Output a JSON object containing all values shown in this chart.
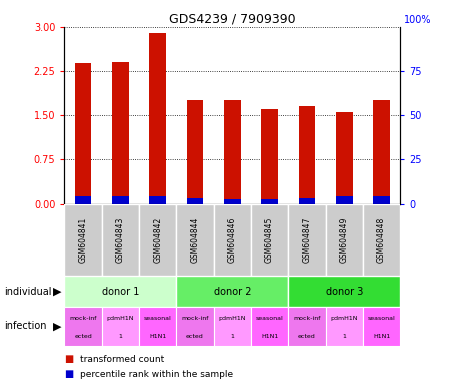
{
  "title": "GDS4239 / 7909390",
  "samples": [
    "GSM604841",
    "GSM604843",
    "GSM604842",
    "GSM604844",
    "GSM604846",
    "GSM604845",
    "GSM604847",
    "GSM604849",
    "GSM604848"
  ],
  "transformed_count": [
    2.38,
    2.4,
    2.9,
    1.75,
    1.75,
    1.6,
    1.65,
    1.55,
    1.75
  ],
  "percentile_rank": [
    0.12,
    0.12,
    0.12,
    0.1,
    0.08,
    0.07,
    0.09,
    0.12,
    0.12
  ],
  "bar_color_red": "#cc1100",
  "bar_color_blue": "#0000cc",
  "ylim_left": [
    0,
    3
  ],
  "ylim_right": [
    0,
    100
  ],
  "yticks_left": [
    0,
    0.75,
    1.5,
    2.25,
    3
  ],
  "yticks_right": [
    0,
    25,
    50,
    75,
    100
  ],
  "donors": [
    {
      "label": "donor 1",
      "start": 0,
      "end": 3,
      "color": "#ccffcc"
    },
    {
      "label": "donor 2",
      "start": 3,
      "end": 6,
      "color": "#66ee66"
    },
    {
      "label": "donor 3",
      "start": 6,
      "end": 9,
      "color": "#33dd33"
    }
  ],
  "infections": [
    {
      "label": "mock-inf\nected",
      "color": "#ee77ee"
    },
    {
      "label": "pdmH1N\n1",
      "color": "#ff99ff"
    },
    {
      "label": "seasonal\nH1N1",
      "color": "#ff66ff"
    },
    {
      "label": "mock-inf\nected",
      "color": "#ee77ee"
    },
    {
      "label": "pdmH1N\n1",
      "color": "#ff99ff"
    },
    {
      "label": "seasonal\nH1N1",
      "color": "#ff66ff"
    },
    {
      "label": "mock-inf\nected",
      "color": "#ee77ee"
    },
    {
      "label": "pdmH1N\n1",
      "color": "#ff99ff"
    },
    {
      "label": "seasonal\nH1N1",
      "color": "#ff66ff"
    }
  ],
  "legend_items": [
    {
      "color": "#cc1100",
      "label": "transformed count"
    },
    {
      "color": "#0000cc",
      "label": "percentile rank within the sample"
    }
  ],
  "sample_box_color": "#cccccc",
  "fig_bg": "#ffffff"
}
